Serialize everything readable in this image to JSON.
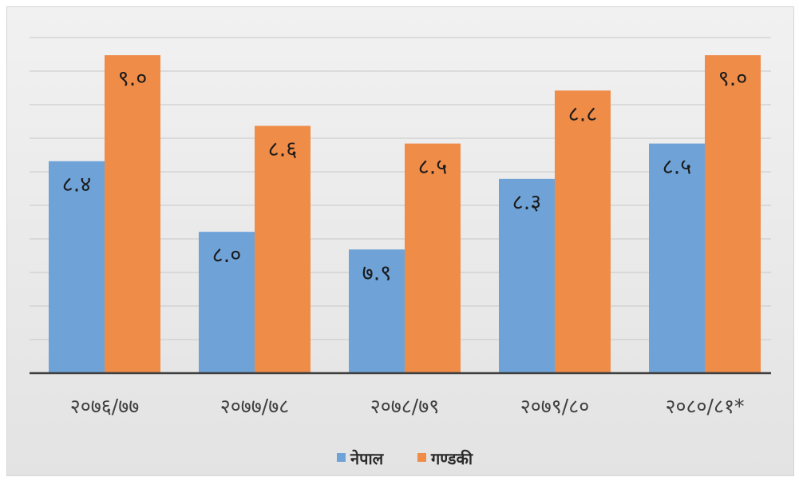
{
  "chart_data": {
    "type": "bar",
    "title": "",
    "xlabel": "",
    "ylabel": "",
    "categories": [
      "२०७६/७७",
      "२०७७/७८",
      "२०७८/७९",
      "२०७९/८०",
      "२०८०/८१*"
    ],
    "series": [
      {
        "name": "नेपाल",
        "color": "#6fa3d8",
        "values": [
          8.4,
          8.0,
          7.9,
          8.3,
          8.5
        ],
        "labels": [
          "८.४",
          "८.०",
          "७.९",
          "८.३",
          "८.५"
        ]
      },
      {
        "name": "गण्डकी",
        "color": "#ef8c48",
        "values": [
          9.0,
          8.6,
          8.5,
          8.8,
          9.0
        ],
        "labels": [
          "९.०",
          "८.६",
          "८.५",
          "८.८",
          "९.०"
        ]
      }
    ],
    "ylim": [
      7.2,
      9.1
    ],
    "grid": true,
    "legend": "bottom-center"
  }
}
